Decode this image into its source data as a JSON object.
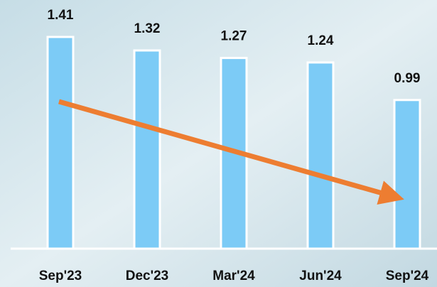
{
  "chart_data": {
    "type": "bar",
    "categories": [
      "Sep'23",
      "Dec'23",
      "Mar'24",
      "Jun'24",
      "Sep'24"
    ],
    "values": [
      1.41,
      1.32,
      1.27,
      1.24,
      0.99
    ],
    "color": "#7ccbf6"
  }
}
